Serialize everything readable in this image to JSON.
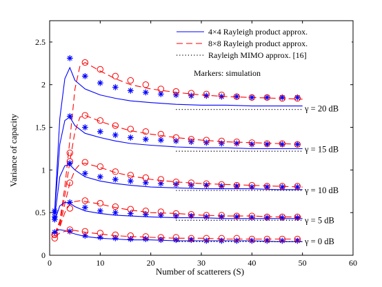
{
  "chart_data": {
    "type": "line",
    "xlabel": "Number of scatterers (S)",
    "ylabel": "Variance of capacity",
    "xlim": [
      0,
      60
    ],
    "ylim": [
      0,
      2.75
    ],
    "xticks": [
      0,
      10,
      20,
      30,
      40,
      50,
      60
    ],
    "yticks": [
      0,
      0.5,
      1,
      1.5,
      2,
      2.5
    ],
    "xtick_labels": [
      "0",
      "10",
      "20",
      "30",
      "40",
      "50",
      "60"
    ],
    "ytick_labels": [
      "0",
      "0.5",
      "1",
      "1.5",
      "2",
      "2.5"
    ],
    "grid": false,
    "legend_position": "top-right",
    "legend": [
      {
        "label": "4×4 Rayleigh product approx.",
        "color": "#0000ff",
        "dash": "solid"
      },
      {
        "label": "8×8 Rayleigh product approx.",
        "color": "#ff0000",
        "dash": "dashed"
      },
      {
        "label": "Rayleigh MIMO approx. [16]",
        "color": "#000000",
        "dash": "dotted"
      }
    ],
    "markers_note": "Markers: simulation",
    "curve_labels": [
      "γ = 20 dB",
      "γ = 15 dB",
      "γ = 10 dB",
      "γ = 5 dB",
      "γ = 0 dB"
    ],
    "series": [
      {
        "group": "20 dB",
        "kind": "4x4-approx",
        "color": "#0000ff",
        "dash": "solid",
        "x": [
          1,
          2,
          3,
          4,
          5,
          7,
          10,
          13,
          16,
          20,
          25,
          30,
          35,
          40,
          45,
          50
        ],
        "y": [
          0.52,
          1.6,
          2.07,
          2.2,
          2.05,
          1.95,
          1.88,
          1.84,
          1.81,
          1.79,
          1.77,
          1.76,
          1.76,
          1.75,
          1.75,
          1.75
        ]
      },
      {
        "group": "20 dB",
        "kind": "8x8-approx",
        "color": "#ff0000",
        "dash": "dashed",
        "x": [
          1,
          2,
          3,
          4,
          5,
          6,
          7,
          10,
          13,
          16,
          20,
          25,
          30,
          35,
          40,
          45,
          50
        ],
        "y": [
          0.25,
          0.4,
          0.8,
          1.35,
          1.95,
          2.22,
          2.26,
          2.16,
          2.07,
          2.0,
          1.95,
          1.91,
          1.88,
          1.86,
          1.85,
          1.84,
          1.83
        ]
      },
      {
        "group": "20 dB",
        "kind": "mimo-approx",
        "color": "#000000",
        "dash": "dotted",
        "x": [
          25,
          50
        ],
        "y": [
          1.71,
          1.71
        ]
      },
      {
        "group": "20 dB",
        "kind": "4x4-sim",
        "color": "#0000ff",
        "marker": "star",
        "x": [
          1,
          4,
          7,
          10,
          13,
          16,
          19,
          22,
          25,
          28,
          31,
          34,
          37,
          40,
          43,
          46,
          49
        ],
        "y": [
          0.52,
          2.31,
          2.1,
          2.02,
          1.97,
          1.93,
          1.91,
          1.89,
          1.88,
          1.87,
          1.87,
          1.86,
          1.86,
          1.85,
          1.85,
          1.85,
          1.85
        ]
      },
      {
        "group": "20 dB",
        "kind": "8x8-sim",
        "color": "#ff0000",
        "marker": "circle",
        "x": [
          1,
          4,
          7,
          10,
          13,
          16,
          19,
          22,
          25,
          28,
          31,
          34,
          37,
          40,
          43,
          46,
          49
        ],
        "y": [
          0.24,
          1.2,
          2.26,
          2.18,
          2.1,
          2.05,
          2.0,
          1.95,
          1.92,
          1.9,
          1.89,
          1.88,
          1.86,
          1.85,
          1.85,
          1.84,
          1.84
        ]
      },
      {
        "group": "15 dB",
        "kind": "4x4-approx",
        "color": "#0000ff",
        "dash": "solid",
        "x": [
          1,
          2,
          3,
          4,
          5,
          7,
          10,
          13,
          16,
          20,
          25,
          30,
          35,
          40,
          45,
          50
        ],
        "y": [
          0.5,
          1.3,
          1.58,
          1.62,
          1.52,
          1.43,
          1.38,
          1.34,
          1.31,
          1.29,
          1.27,
          1.26,
          1.26,
          1.25,
          1.25,
          1.25
        ]
      },
      {
        "group": "15 dB",
        "kind": "8x8-approx",
        "color": "#ff0000",
        "dash": "dashed",
        "x": [
          1,
          2,
          3,
          4,
          5,
          6,
          7,
          10,
          13,
          16,
          20,
          25,
          30,
          35,
          40,
          45,
          50
        ],
        "y": [
          0.25,
          0.38,
          0.7,
          1.1,
          1.45,
          1.62,
          1.64,
          1.57,
          1.51,
          1.46,
          1.42,
          1.38,
          1.35,
          1.33,
          1.32,
          1.31,
          1.3
        ]
      },
      {
        "group": "15 dB",
        "kind": "mimo-approx",
        "color": "#000000",
        "dash": "dotted",
        "x": [
          25,
          50
        ],
        "y": [
          1.22,
          1.22
        ]
      },
      {
        "group": "15 dB",
        "kind": "4x4-sim",
        "color": "#0000ff",
        "marker": "star",
        "x": [
          1,
          4,
          7,
          10,
          13,
          16,
          19,
          22,
          25,
          28,
          31,
          34,
          37,
          40,
          43,
          46,
          49
        ],
        "y": [
          0.5,
          1.63,
          1.5,
          1.45,
          1.41,
          1.38,
          1.36,
          1.35,
          1.34,
          1.33,
          1.32,
          1.31,
          1.31,
          1.3,
          1.3,
          1.3,
          1.3
        ]
      },
      {
        "group": "15 dB",
        "kind": "8x8-sim",
        "color": "#ff0000",
        "marker": "circle",
        "x": [
          1,
          4,
          7,
          10,
          13,
          16,
          19,
          22,
          25,
          28,
          31,
          34,
          37,
          40,
          43,
          46,
          49
        ],
        "y": [
          0.24,
          1.1,
          1.64,
          1.58,
          1.52,
          1.48,
          1.45,
          1.42,
          1.38,
          1.36,
          1.35,
          1.34,
          1.33,
          1.32,
          1.31,
          1.31,
          1.3
        ]
      },
      {
        "group": "10 dB",
        "kind": "4x4-approx",
        "color": "#0000ff",
        "dash": "solid",
        "x": [
          1,
          2,
          3,
          4,
          5,
          7,
          10,
          13,
          16,
          20,
          25,
          30,
          35,
          40,
          45,
          50
        ],
        "y": [
          0.45,
          0.92,
          1.05,
          1.06,
          1.0,
          0.92,
          0.87,
          0.84,
          0.82,
          0.8,
          0.79,
          0.78,
          0.78,
          0.78,
          0.77,
          0.77
        ]
      },
      {
        "group": "10 dB",
        "kind": "8x8-approx",
        "color": "#ff0000",
        "dash": "dashed",
        "x": [
          1,
          2,
          3,
          4,
          5,
          6,
          7,
          10,
          13,
          16,
          20,
          25,
          30,
          35,
          40,
          45,
          50
        ],
        "y": [
          0.25,
          0.35,
          0.6,
          0.85,
          1.0,
          1.07,
          1.08,
          1.03,
          0.97,
          0.93,
          0.89,
          0.86,
          0.84,
          0.83,
          0.82,
          0.81,
          0.8
        ]
      },
      {
        "group": "10 dB",
        "kind": "mimo-approx",
        "color": "#000000",
        "dash": "dotted",
        "x": [
          25,
          50
        ],
        "y": [
          0.76,
          0.76
        ]
      },
      {
        "group": "10 dB",
        "kind": "4x4-sim",
        "color": "#0000ff",
        "marker": "star",
        "x": [
          1,
          4,
          7,
          10,
          13,
          16,
          19,
          22,
          25,
          28,
          31,
          34,
          37,
          40,
          43,
          46,
          49
        ],
        "y": [
          0.45,
          1.08,
          0.96,
          0.92,
          0.89,
          0.87,
          0.85,
          0.84,
          0.83,
          0.82,
          0.82,
          0.81,
          0.81,
          0.8,
          0.8,
          0.8,
          0.8
        ]
      },
      {
        "group": "10 dB",
        "kind": "8x8-sim",
        "color": "#ff0000",
        "marker": "circle",
        "x": [
          1,
          4,
          7,
          10,
          13,
          16,
          19,
          22,
          25,
          28,
          31,
          34,
          37,
          40,
          43,
          46,
          49
        ],
        "y": [
          0.24,
          0.85,
          1.09,
          1.04,
          0.98,
          0.94,
          0.91,
          0.89,
          0.86,
          0.85,
          0.84,
          0.83,
          0.82,
          0.82,
          0.81,
          0.81,
          0.81
        ]
      },
      {
        "group": "5 dB",
        "kind": "4x4-approx",
        "color": "#0000ff",
        "dash": "solid",
        "x": [
          1,
          2,
          3,
          4,
          5,
          7,
          10,
          13,
          16,
          20,
          25,
          30,
          35,
          40,
          45,
          50
        ],
        "y": [
          0.4,
          0.58,
          0.62,
          0.61,
          0.57,
          0.52,
          0.49,
          0.47,
          0.46,
          0.45,
          0.44,
          0.44,
          0.43,
          0.43,
          0.43,
          0.43
        ]
      },
      {
        "group": "5 dB",
        "kind": "8x8-approx",
        "color": "#ff0000",
        "dash": "dashed",
        "x": [
          1,
          2,
          3,
          4,
          5,
          6,
          7,
          10,
          13,
          16,
          20,
          25,
          30,
          35,
          40,
          45,
          50
        ],
        "y": [
          0.25,
          0.33,
          0.5,
          0.6,
          0.63,
          0.64,
          0.63,
          0.6,
          0.56,
          0.53,
          0.5,
          0.49,
          0.47,
          0.46,
          0.46,
          0.45,
          0.45
        ]
      },
      {
        "group": "5 dB",
        "kind": "mimo-approx",
        "color": "#000000",
        "dash": "dotted",
        "x": [
          25,
          50
        ],
        "y": [
          0.41,
          0.41
        ]
      },
      {
        "group": "5 dB",
        "kind": "4x4-sim",
        "color": "#0000ff",
        "marker": "star",
        "x": [
          1,
          4,
          7,
          10,
          13,
          16,
          19,
          22,
          25,
          28,
          31,
          34,
          37,
          40,
          43,
          46,
          49
        ],
        "y": [
          0.42,
          0.62,
          0.56,
          0.52,
          0.5,
          0.49,
          0.48,
          0.47,
          0.46,
          0.46,
          0.45,
          0.45,
          0.45,
          0.44,
          0.44,
          0.44,
          0.44
        ]
      },
      {
        "group": "5 dB",
        "kind": "8x8-sim",
        "color": "#ff0000",
        "marker": "circle",
        "x": [
          1,
          4,
          7,
          10,
          13,
          16,
          19,
          22,
          25,
          28,
          31,
          34,
          37,
          40,
          43,
          46,
          49
        ],
        "y": [
          0.24,
          0.55,
          0.64,
          0.61,
          0.57,
          0.54,
          0.52,
          0.51,
          0.49,
          0.48,
          0.47,
          0.47,
          0.46,
          0.46,
          0.45,
          0.45,
          0.45
        ]
      },
      {
        "group": "0 dB",
        "kind": "4x4-approx",
        "color": "#0000ff",
        "dash": "solid",
        "x": [
          1,
          2,
          3,
          4,
          5,
          7,
          10,
          13,
          16,
          20,
          25,
          30,
          35,
          40,
          45,
          50
        ],
        "y": [
          0.28,
          0.3,
          0.29,
          0.27,
          0.25,
          0.22,
          0.2,
          0.19,
          0.18,
          0.18,
          0.17,
          0.17,
          0.17,
          0.17,
          0.16,
          0.16
        ]
      },
      {
        "group": "0 dB",
        "kind": "8x8-approx",
        "color": "#ff0000",
        "dash": "dashed",
        "x": [
          1,
          2,
          3,
          4,
          5,
          6,
          7,
          10,
          13,
          16,
          20,
          25,
          30,
          35,
          40,
          45,
          50
        ],
        "y": [
          0.22,
          0.26,
          0.28,
          0.29,
          0.29,
          0.28,
          0.27,
          0.25,
          0.23,
          0.22,
          0.21,
          0.2,
          0.2,
          0.19,
          0.19,
          0.19,
          0.19
        ]
      },
      {
        "group": "0 dB",
        "kind": "mimo-approx",
        "color": "#000000",
        "dash": "dotted",
        "x": [
          25,
          50
        ],
        "y": [
          0.16,
          0.16
        ]
      },
      {
        "group": "0 dB",
        "kind": "4x4-sim",
        "color": "#0000ff",
        "marker": "star",
        "x": [
          1,
          4,
          7,
          10,
          13,
          16,
          19,
          22,
          25,
          28,
          31,
          34,
          37,
          40,
          43,
          46,
          49
        ],
        "y": [
          0.27,
          0.28,
          0.23,
          0.21,
          0.2,
          0.19,
          0.19,
          0.18,
          0.18,
          0.18,
          0.17,
          0.17,
          0.17,
          0.17,
          0.17,
          0.17,
          0.17
        ]
      },
      {
        "group": "0 dB",
        "kind": "8x8-sim",
        "color": "#ff0000",
        "marker": "circle",
        "x": [
          1,
          4,
          7,
          10,
          13,
          16,
          19,
          22,
          25,
          28,
          31,
          34,
          37,
          40,
          43,
          46,
          49
        ],
        "y": [
          0.2,
          0.3,
          0.28,
          0.26,
          0.24,
          0.23,
          0.22,
          0.21,
          0.21,
          0.2,
          0.2,
          0.2,
          0.2,
          0.19,
          0.19,
          0.19,
          0.19
        ]
      }
    ]
  }
}
